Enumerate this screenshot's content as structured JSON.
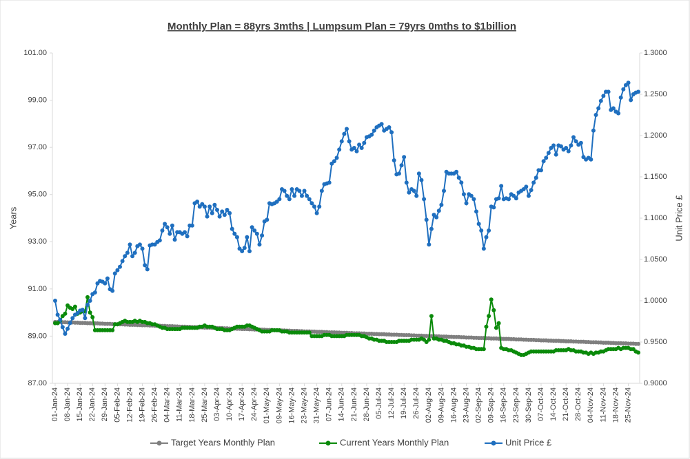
{
  "chart_data": {
    "type": "line",
    "title": "Monthly Plan = 88yrs 3mths | Lumpsum Plan = 79yrs 0mths to $1billion",
    "y_label": "Years",
    "y2_label": "Unit Price £",
    "categories": [
      "01-Jan-24",
      null,
      null,
      null,
      null,
      "08-Jan-24",
      null,
      null,
      null,
      null,
      "15-Jan-24",
      null,
      null,
      null,
      null,
      "22-Jan-24",
      null,
      null,
      null,
      null,
      "29-Jan-24",
      null,
      null,
      null,
      null,
      "05-Feb-24",
      null,
      null,
      null,
      null,
      "12-Feb-24",
      null,
      null,
      null,
      null,
      "19-Feb-24",
      null,
      null,
      null,
      null,
      "26-Feb-24",
      null,
      null,
      null,
      null,
      "04-Mar-24",
      null,
      null,
      null,
      null,
      "11-Mar-24",
      null,
      null,
      null,
      null,
      "18-Mar-24",
      null,
      null,
      null,
      null,
      "25-Mar-24",
      null,
      null,
      null,
      null,
      "03-Apr-24",
      null,
      null,
      null,
      null,
      "10-Apr-24",
      null,
      null,
      null,
      null,
      "17-Apr-24",
      null,
      null,
      null,
      null,
      "24-Apr-24",
      null,
      null,
      null,
      null,
      "01-May-24",
      null,
      null,
      null,
      null,
      "09-May-24",
      null,
      null,
      null,
      null,
      "16-May-24",
      null,
      null,
      null,
      null,
      "23-May-24",
      null,
      null,
      null,
      null,
      "31-May-24",
      null,
      null,
      null,
      null,
      "07-Jun-24",
      null,
      null,
      null,
      null,
      "14-Jun-24",
      null,
      null,
      null,
      null,
      "21-Jun-24",
      null,
      null,
      null,
      null,
      "28-Jun-24",
      null,
      null,
      null,
      null,
      "05-Jul-24",
      null,
      null,
      null,
      null,
      "12-Jul-24",
      null,
      null,
      null,
      null,
      "19-Jul-24",
      null,
      null,
      null,
      null,
      "26-Jul-24",
      null,
      null,
      null,
      null,
      "02-Aug-24",
      null,
      null,
      null,
      null,
      "09-Aug-24",
      null,
      null,
      null,
      null,
      "16-Aug-24",
      null,
      null,
      null,
      null,
      "23-Aug-24",
      null,
      null,
      null,
      null,
      "02-Sep-24",
      null,
      null,
      null,
      null,
      "09-Sep-24",
      null,
      null,
      null,
      null,
      "16-Sep-24",
      null,
      null,
      null,
      null,
      "23-Sep-24",
      null,
      null,
      null,
      null,
      "30-Sep-24",
      null,
      null,
      null,
      null,
      "07-Oct-24",
      null,
      null,
      null,
      null,
      "14-Oct-24",
      null,
      null,
      null,
      null,
      "21-Oct-24",
      null,
      null,
      null,
      null,
      "28-Oct-24",
      null,
      null,
      null,
      null,
      "04-Nov-24",
      null,
      null,
      null,
      null,
      "11-Nov-24",
      null,
      null,
      null,
      null,
      "18-Nov-24",
      null,
      null,
      null,
      null,
      "25-Nov-24",
      null,
      null,
      null,
      null
    ],
    "series": [
      {
        "name": "Target Years Monthly Plan",
        "color": "#7f7f7f",
        "values": [
          89.6,
          89.6,
          89.6,
          89.59,
          89.59,
          89.58,
          89.58,
          89.58,
          89.57,
          89.57,
          89.56,
          89.56,
          89.56,
          89.55,
          89.55,
          89.54,
          89.54,
          89.54,
          89.53,
          89.53,
          89.52,
          89.52,
          89.52,
          89.51,
          89.51,
          89.5,
          89.5,
          89.5,
          89.49,
          89.49,
          89.48,
          89.48,
          89.48,
          89.47,
          89.47,
          89.46,
          89.46,
          89.46,
          89.45,
          89.45,
          89.44,
          89.44,
          89.44,
          89.43,
          89.43,
          89.42,
          89.42,
          89.42,
          89.41,
          89.41,
          89.4,
          89.4,
          89.4,
          89.39,
          89.39,
          89.38,
          89.38,
          89.38,
          89.37,
          89.37,
          89.36,
          89.36,
          89.36,
          89.35,
          89.35,
          89.34,
          89.34,
          89.34,
          89.33,
          89.33,
          89.32,
          89.32,
          89.32,
          89.31,
          89.31,
          89.3,
          89.3,
          89.3,
          89.29,
          89.29,
          89.28,
          89.28,
          89.28,
          89.27,
          89.27,
          89.26,
          89.26,
          89.26,
          89.25,
          89.25,
          89.24,
          89.24,
          89.24,
          89.23,
          89.23,
          89.22,
          89.22,
          89.22,
          89.21,
          89.21,
          89.2,
          89.2,
          89.2,
          89.19,
          89.19,
          89.18,
          89.18,
          89.18,
          89.17,
          89.17,
          89.16,
          89.16,
          89.16,
          89.15,
          89.15,
          89.14,
          89.14,
          89.14,
          89.13,
          89.13,
          89.12,
          89.12,
          89.12,
          89.11,
          89.11,
          89.1,
          89.1,
          89.1,
          89.09,
          89.09,
          89.08,
          89.08,
          89.08,
          89.07,
          89.07,
          89.06,
          89.06,
          89.06,
          89.05,
          89.05,
          89.04,
          89.04,
          89.04,
          89.03,
          89.03,
          89.02,
          89.02,
          89.02,
          89.01,
          89.01,
          89.0,
          89.0,
          89.0,
          88.99,
          88.99,
          88.98,
          88.98,
          88.98,
          88.97,
          88.97,
          88.96,
          88.96,
          88.96,
          88.95,
          88.95,
          88.94,
          88.94,
          88.94,
          88.93,
          88.93,
          88.92,
          88.92,
          88.92,
          88.91,
          88.91,
          88.9,
          88.9,
          88.9,
          88.89,
          88.89,
          88.88,
          88.88,
          88.88,
          88.87,
          88.87,
          88.86,
          88.86,
          88.86,
          88.85,
          88.85,
          88.84,
          88.84,
          88.84,
          88.83,
          88.83,
          88.82,
          88.82,
          88.82,
          88.81,
          88.81,
          88.8,
          88.8,
          88.8,
          88.79,
          88.79,
          88.78,
          88.78,
          88.78,
          88.77,
          88.77,
          88.76,
          88.76,
          88.76,
          88.75,
          88.75,
          88.74,
          88.74,
          88.74,
          88.73,
          88.73,
          88.72,
          88.72,
          88.72,
          88.71,
          88.71,
          88.7,
          88.7,
          88.7,
          88.69,
          88.69,
          88.68,
          88.68,
          88.68,
          88.67,
          88.67
        ]
      },
      {
        "name": "Current Years Monthly Plan",
        "color": "#0a8a0a",
        "values": [
          89.55,
          89.55,
          89.65,
          89.85,
          89.95,
          90.3,
          90.2,
          90.15,
          90.25,
          89.95,
          90.0,
          90.05,
          90.05,
          90.65,
          90.0,
          89.8,
          89.25,
          89.25,
          89.25,
          89.25,
          89.25,
          89.25,
          89.25,
          89.25,
          89.5,
          89.5,
          89.55,
          89.6,
          89.65,
          89.6,
          89.6,
          89.6,
          89.65,
          89.6,
          89.65,
          89.6,
          89.6,
          89.55,
          89.55,
          89.5,
          89.5,
          89.45,
          89.4,
          89.35,
          89.35,
          89.3,
          89.3,
          89.3,
          89.3,
          89.3,
          89.3,
          89.35,
          89.35,
          89.35,
          89.35,
          89.35,
          89.35,
          89.35,
          89.4,
          89.4,
          89.45,
          89.4,
          89.4,
          89.4,
          89.35,
          89.3,
          89.3,
          89.3,
          89.25,
          89.25,
          89.25,
          89.3,
          89.35,
          89.4,
          89.4,
          89.4,
          89.4,
          89.45,
          89.45,
          89.4,
          89.35,
          89.3,
          89.25,
          89.2,
          89.2,
          89.2,
          89.2,
          89.25,
          89.25,
          89.25,
          89.25,
          89.2,
          89.2,
          89.2,
          89.15,
          89.15,
          89.15,
          89.15,
          89.15,
          89.15,
          89.15,
          89.15,
          89.15,
          89.0,
          89.0,
          89.0,
          89.0,
          89.0,
          89.05,
          89.05,
          89.05,
          89.0,
          89.0,
          89.0,
          89.0,
          89.0,
          89.0,
          89.05,
          89.05,
          89.05,
          89.05,
          89.05,
          89.05,
          89.0,
          89.0,
          88.95,
          88.9,
          88.9,
          88.85,
          88.85,
          88.8,
          88.8,
          88.8,
          88.75,
          88.75,
          88.75,
          88.75,
          88.75,
          88.8,
          88.8,
          88.8,
          88.8,
          88.8,
          88.85,
          88.85,
          88.85,
          88.85,
          88.9,
          88.85,
          88.75,
          88.85,
          89.85,
          88.9,
          88.9,
          88.85,
          88.85,
          88.8,
          88.8,
          88.75,
          88.7,
          88.7,
          88.65,
          88.65,
          88.6,
          88.6,
          88.55,
          88.55,
          88.5,
          88.5,
          88.45,
          88.45,
          88.45,
          88.45,
          89.4,
          89.85,
          90.55,
          90.1,
          89.35,
          89.55,
          88.5,
          88.45,
          88.45,
          88.4,
          88.4,
          88.35,
          88.3,
          88.25,
          88.2,
          88.2,
          88.25,
          88.3,
          88.35,
          88.35,
          88.35,
          88.35,
          88.35,
          88.35,
          88.35,
          88.35,
          88.35,
          88.35,
          88.4,
          88.4,
          88.4,
          88.4,
          88.4,
          88.45,
          88.4,
          88.4,
          88.35,
          88.35,
          88.35,
          88.3,
          88.3,
          88.25,
          88.3,
          88.25,
          88.3,
          88.3,
          88.35,
          88.35,
          88.4,
          88.45,
          88.45,
          88.45,
          88.45,
          88.5,
          88.45,
          88.5,
          88.5,
          88.5,
          88.45,
          88.45,
          88.35,
          88.3
        ]
      },
      {
        "name": "Unit Price £",
        "color": "#1f6fbf",
        "axis": "y2",
        "values": [
          1.0,
          0.983,
          0.977,
          0.968,
          0.96,
          0.966,
          0.973,
          0.979,
          0.983,
          0.985,
          0.988,
          0.989,
          0.979,
          0.995,
          1.0,
          1.008,
          1.01,
          1.021,
          1.024,
          1.023,
          1.021,
          1.027,
          1.014,
          1.012,
          1.033,
          1.037,
          1.041,
          1.048,
          1.054,
          1.058,
          1.068,
          1.054,
          1.058,
          1.066,
          1.068,
          1.063,
          1.043,
          1.038,
          1.067,
          1.068,
          1.068,
          1.071,
          1.073,
          1.085,
          1.093,
          1.089,
          1.081,
          1.091,
          1.074,
          1.083,
          1.083,
          1.081,
          1.083,
          1.078,
          1.091,
          1.091,
          1.118,
          1.12,
          1.114,
          1.117,
          1.114,
          1.102,
          1.114,
          1.106,
          1.116,
          1.11,
          1.102,
          1.108,
          1.104,
          1.11,
          1.106,
          1.087,
          1.081,
          1.077,
          1.063,
          1.06,
          1.064,
          1.077,
          1.06,
          1.089,
          1.085,
          1.081,
          1.068,
          1.079,
          1.096,
          1.098,
          1.118,
          1.117,
          1.118,
          1.12,
          1.123,
          1.135,
          1.133,
          1.127,
          1.123,
          1.135,
          1.127,
          1.135,
          1.133,
          1.127,
          1.133,
          1.127,
          1.123,
          1.118,
          1.114,
          1.106,
          1.114,
          1.133,
          1.141,
          1.142,
          1.143,
          1.166,
          1.169,
          1.173,
          1.183,
          1.193,
          1.202,
          1.208,
          1.193,
          1.183,
          1.185,
          1.181,
          1.189,
          1.185,
          1.191,
          1.198,
          1.199,
          1.201,
          1.206,
          1.21,
          1.212,
          1.214,
          1.206,
          1.208,
          1.21,
          1.204,
          1.17,
          1.153,
          1.154,
          1.164,
          1.174,
          1.143,
          1.131,
          1.135,
          1.133,
          1.127,
          1.154,
          1.146,
          1.123,
          1.098,
          1.068,
          1.087,
          1.104,
          1.101,
          1.109,
          1.116,
          1.133,
          1.156,
          1.154,
          1.154,
          1.154,
          1.156,
          1.149,
          1.143,
          1.129,
          1.118,
          1.129,
          1.127,
          1.123,
          1.108,
          1.093,
          1.085,
          1.063,
          1.077,
          1.085,
          1.114,
          1.113,
          1.123,
          1.124,
          1.139,
          1.123,
          1.124,
          1.123,
          1.129,
          1.127,
          1.124,
          1.131,
          1.133,
          1.135,
          1.138,
          1.127,
          1.134,
          1.143,
          1.149,
          1.158,
          1.158,
          1.169,
          1.173,
          1.179,
          1.185,
          1.188,
          1.177,
          1.188,
          1.187,
          1.183,
          1.185,
          1.181,
          1.188,
          1.198,
          1.193,
          1.189,
          1.191,
          1.174,
          1.171,
          1.173,
          1.171,
          1.206,
          1.225,
          1.233,
          1.242,
          1.248,
          1.253,
          1.253,
          1.231,
          1.233,
          1.229,
          1.227,
          1.246,
          1.256,
          1.261,
          1.264,
          1.243,
          1.25,
          1.252,
          1.253
        ]
      }
    ],
    "ylim": [
      87,
      101
    ],
    "yticks": [
      {
        "value": 87,
        "label": "87.00"
      },
      {
        "value": 89,
        "label": "89.00"
      },
      {
        "value": 91,
        "label": "91.00"
      },
      {
        "value": 93,
        "label": "93.00"
      },
      {
        "value": 95,
        "label": "95.00"
      },
      {
        "value": 97,
        "label": "97.00"
      },
      {
        "value": 99,
        "label": "99.00"
      },
      {
        "value": 101,
        "label": "101.00"
      }
    ],
    "y2lim": [
      0.9,
      1.3
    ],
    "y2ticks": [
      {
        "value": 0.9,
        "label": "0.9000"
      },
      {
        "value": 0.95,
        "label": "0.9500"
      },
      {
        "value": 1.0,
        "label": "1.0000"
      },
      {
        "value": 1.05,
        "label": "1.0500"
      },
      {
        "value": 1.1,
        "label": "1.1000"
      },
      {
        "value": 1.15,
        "label": "1.1500"
      },
      {
        "value": 1.2,
        "label": "1.2000"
      },
      {
        "value": 1.25,
        "label": "1.2500"
      },
      {
        "value": 1.3,
        "label": "1.3000"
      }
    ],
    "grid": false,
    "legend": "bottom"
  }
}
